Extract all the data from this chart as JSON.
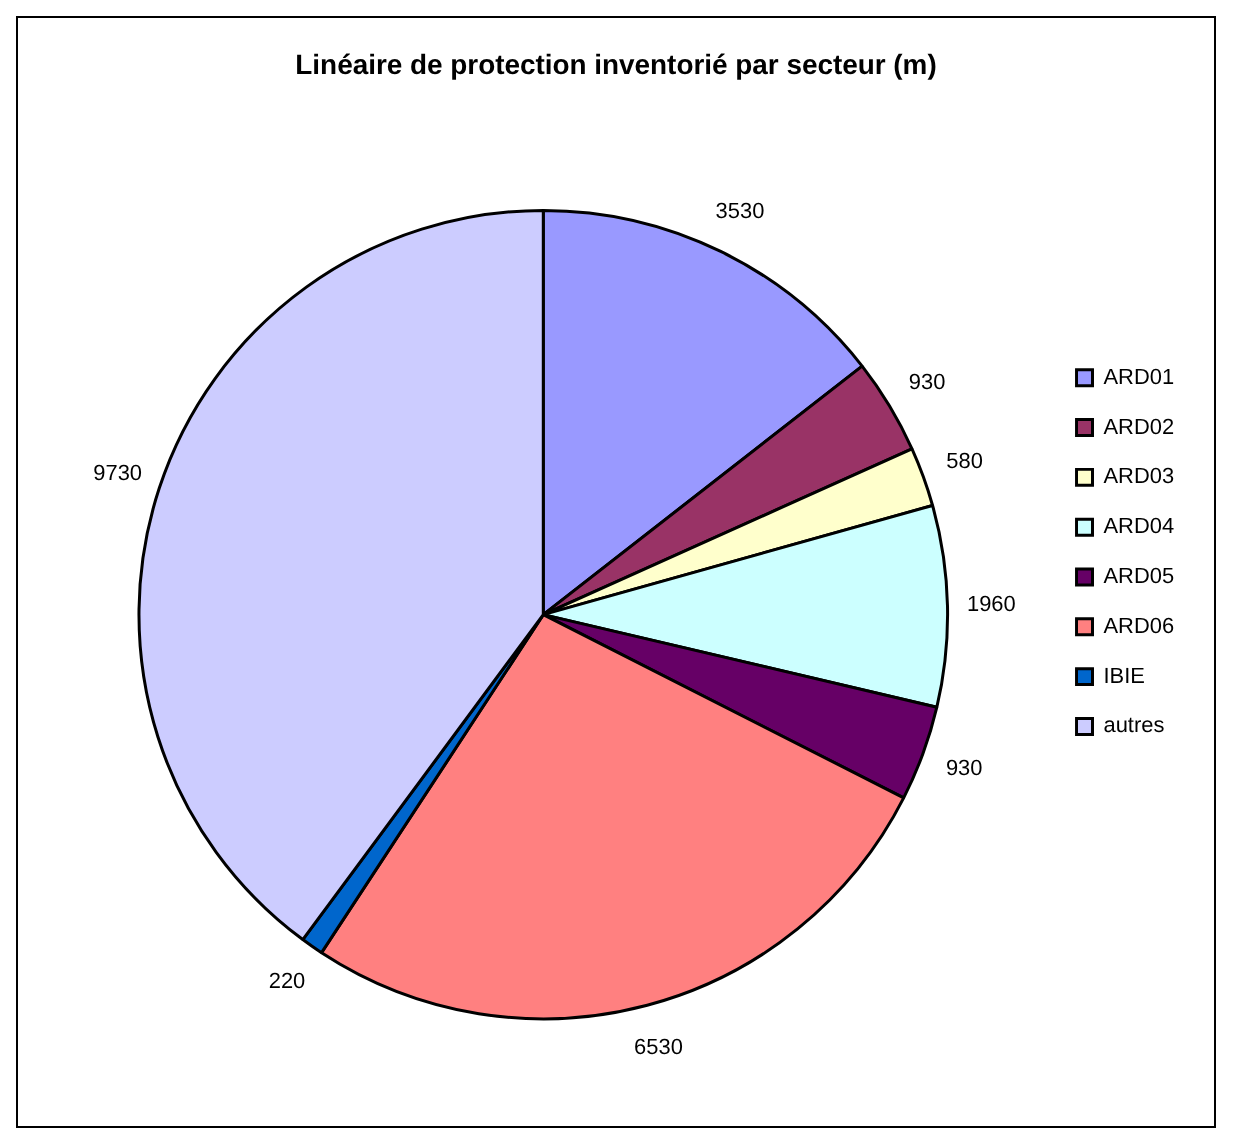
{
  "chart_data": {
    "type": "pie",
    "title": "Linéaire de protection inventorié par secteur (m)",
    "categories": [
      "ARD01",
      "ARD02",
      "ARD03",
      "ARD04",
      "ARD05",
      "ARD06",
      "IBIE",
      "autres"
    ],
    "values": [
      3530,
      930,
      580,
      1960,
      930,
      6530,
      220,
      9730
    ],
    "colors": [
      "#9999ff",
      "#993366",
      "#ffffcc",
      "#ccffff",
      "#660066",
      "#ff8080",
      "#0066cc",
      "#ccccff"
    ],
    "data_labels": true,
    "legend": "right"
  }
}
